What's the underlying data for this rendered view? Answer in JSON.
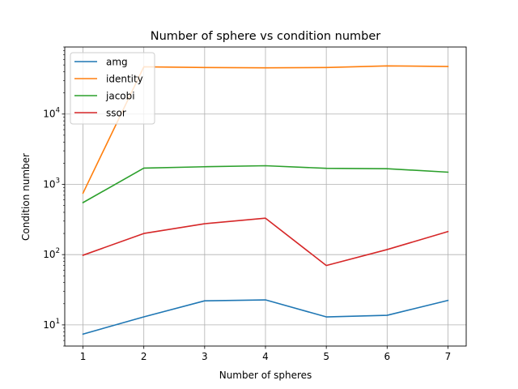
{
  "chart_data": {
    "type": "line",
    "title": "Number of sphere vs condition number",
    "xlabel": "Number of spheres",
    "ylabel": "Condition number",
    "yscale": "log",
    "x": [
      1,
      2,
      3,
      4,
      5,
      6,
      7
    ],
    "xlim": [
      0.7,
      7.3
    ],
    "ylim": [
      5,
      90000
    ],
    "x_ticks": [
      "1",
      "2",
      "3",
      "4",
      "5",
      "6",
      "7"
    ],
    "y_ticks": [
      {
        "value": 10,
        "base": "10",
        "exp": "1"
      },
      {
        "value": 100,
        "base": "10",
        "exp": "2"
      },
      {
        "value": 1000,
        "base": "10",
        "exp": "3"
      },
      {
        "value": 10000,
        "base": "10",
        "exp": "4"
      }
    ],
    "grid": true,
    "legend_position": "top-left",
    "series": [
      {
        "name": "amg",
        "color": "#1f77b4",
        "values": [
          7.4,
          13,
          22,
          22.7,
          13,
          13.7,
          22.3
        ]
      },
      {
        "name": "identity",
        "color": "#ff7f0e",
        "values": [
          750,
          47000,
          46000,
          45500,
          46000,
          48500,
          47500
        ]
      },
      {
        "name": "jacobi",
        "color": "#2ca02c",
        "values": [
          550,
          1700,
          1780,
          1840,
          1690,
          1670,
          1490
        ]
      },
      {
        "name": "ssor",
        "color": "#d62728",
        "values": [
          98,
          200,
          275,
          330,
          70,
          118,
          213
        ]
      }
    ]
  }
}
